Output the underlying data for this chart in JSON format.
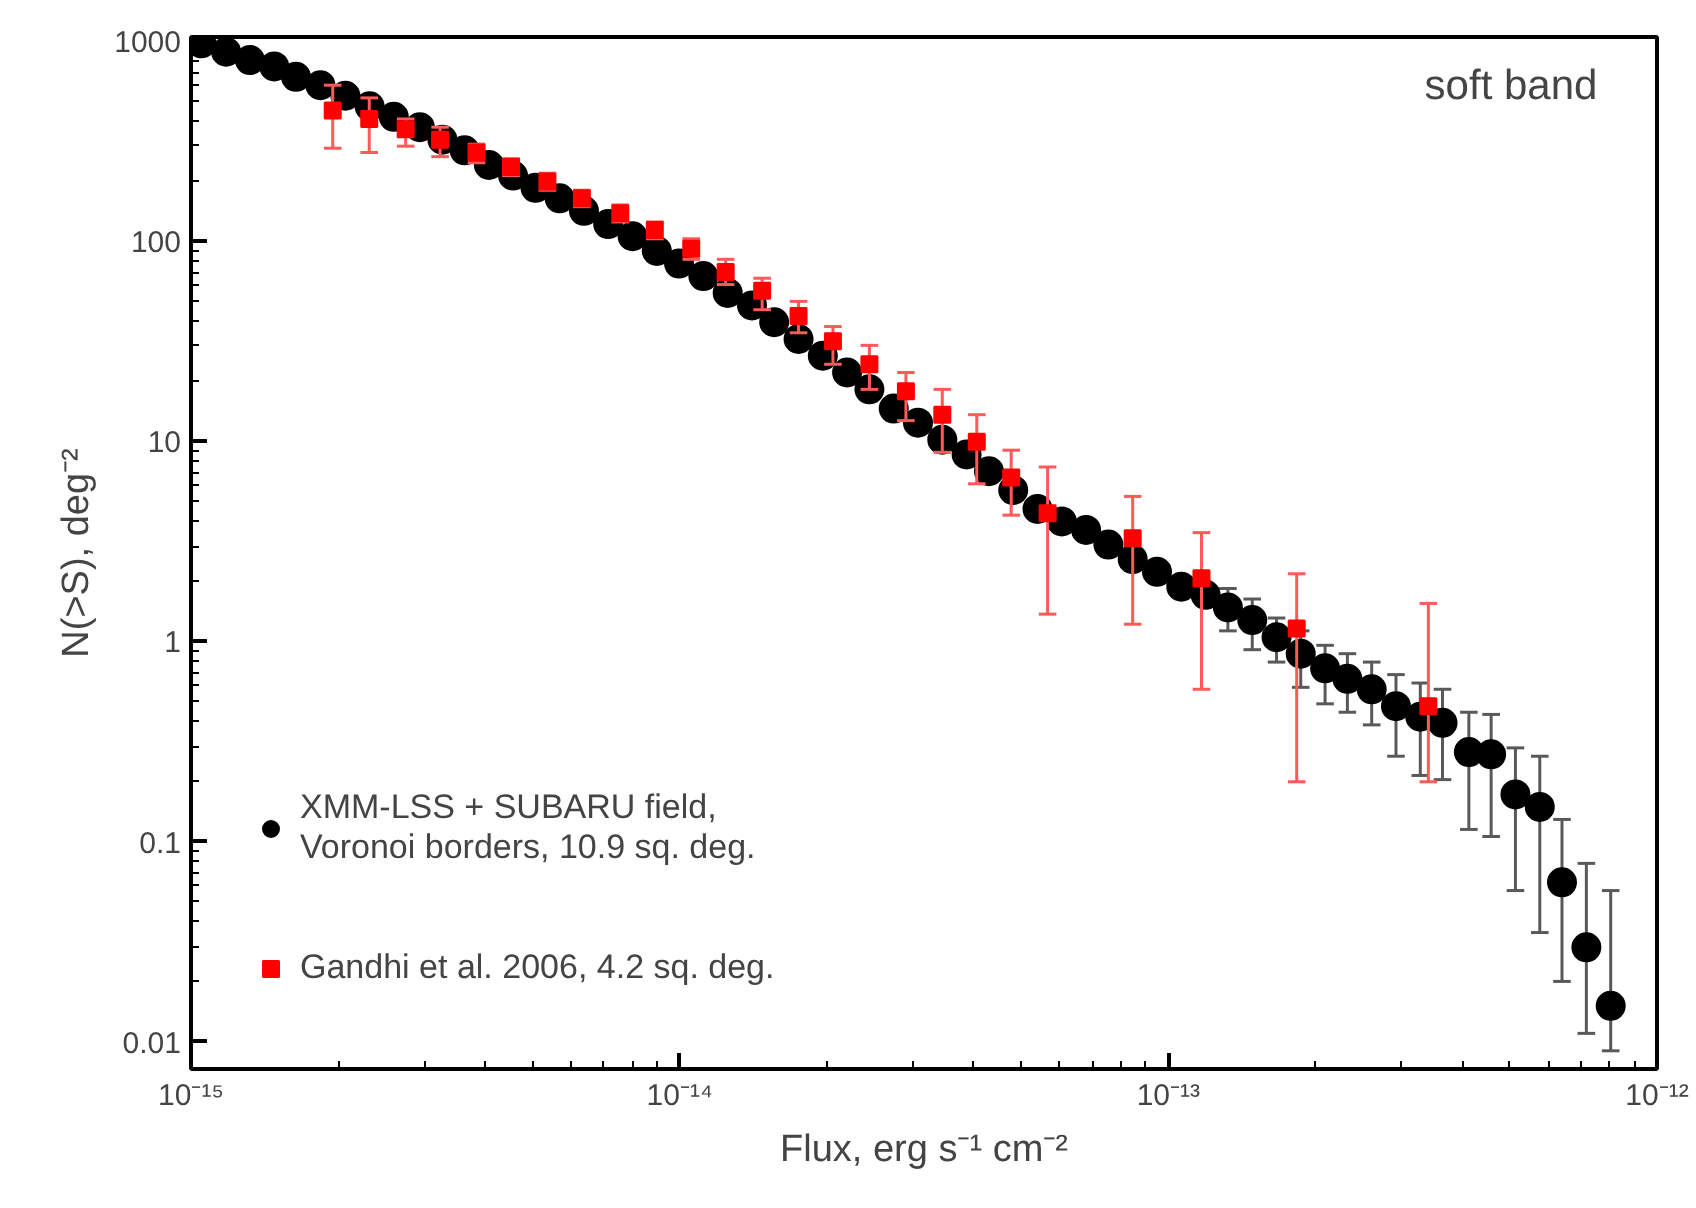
{
  "chart_data": {
    "type": "scatter",
    "xlabel": "Flux, erg s⁻¹ cm⁻²",
    "ylabel": "N(>S), deg⁻²",
    "log": "xy",
    "grid": false,
    "legend": "bottom left",
    "annotations": [
      "soft band"
    ],
    "xlim": [
      1e-15,
      1e-12
    ],
    "ylim": [
      0.0073,
      1050
    ],
    "xticks": [
      {
        "value": 1e-15,
        "label": "10⁻¹⁵"
      },
      {
        "value": 1e-14,
        "label": "10⁻¹⁴"
      },
      {
        "value": 1e-13,
        "label": "10⁻¹³"
      },
      {
        "value": 1e-12,
        "label": "10⁻¹²"
      }
    ],
    "yticks": [
      0.01,
      0.1,
      1,
      10,
      100,
      1000
    ],
    "series": [
      {
        "name": "XMM-LSS + SUBARU field,\nVoronoi borders, 10.9 sq. deg.",
        "color": "#000000",
        "marker": "circle",
        "x": [
          1.05e-15,
          1.18e-15,
          1.32e-15,
          1.48e-15,
          1.64e-15,
          1.84e-15,
          2.07e-15,
          2.32e-15,
          2.6e-15,
          2.94e-15,
          3.27e-15,
          3.63e-15,
          4.07e-15,
          4.56e-15,
          5.07e-15,
          5.68e-15,
          6.37e-15,
          7.14e-15,
          8.01e-15,
          8.98e-15,
          9.97e-15,
          1.118e-14,
          1.254e-14,
          1.406e-14,
          1.561e-14,
          1.751e-14,
          1.963e-14,
          2.201e-14,
          2.445e-14,
          2.742e-14,
          3.074e-14,
          3.447e-14,
          3.865e-14,
          4.294e-14,
          4.815e-14,
          5.399e-14,
          6.053e-14,
          6.787e-14,
          7.539e-14,
          8.454e-14,
          9.48e-14,
          1.063e-13,
          1.192e-13,
          1.324e-13,
          1.485e-13,
          1.665e-13,
          1.866e-13,
          2.093e-13,
          2.325e-13,
          2.607e-13,
          2.923e-13,
          3.278e-13,
          3.64e-13,
          4.121e-13,
          4.577e-13,
          5.132e-13,
          5.756e-13,
          6.391e-13,
          7.169e-13,
          8.04e-13
        ],
        "values": [
          976,
          886,
          805,
          748,
          664,
          603,
          534,
          473,
          419,
          372,
          322,
          285,
          241,
          213,
          185,
          164,
          142,
          122,
          106,
          89.5,
          77.4,
          67.0,
          55.2,
          47.8,
          39.4,
          32.5,
          26.8,
          22.1,
          18.2,
          14.6,
          12.4,
          10.2,
          8.61,
          7.1,
          5.71,
          4.6,
          3.98,
          3.61,
          3.05,
          2.58,
          2.23,
          1.88,
          1.71,
          1.48,
          1.28,
          1.05,
          0.869,
          0.734,
          0.651,
          0.577,
          0.475,
          0.421,
          0.392,
          0.28,
          0.273,
          0.172,
          0.149,
          0.0626,
          0.0296,
          0.0151
        ],
        "errors": [
          null,
          null,
          null,
          null,
          null,
          null,
          null,
          null,
          null,
          null,
          null,
          null,
          null,
          null,
          null,
          null,
          null,
          null,
          null,
          null,
          null,
          null,
          null,
          null,
          null,
          null,
          null,
          null,
          null,
          null,
          null,
          null,
          null,
          null,
          null,
          null,
          null,
          null,
          null,
          null,
          null,
          null,
          null,
          [
            1.13,
            1.84
          ],
          [
            0.91,
            1.63
          ],
          [
            0.789,
            1.31
          ],
          [
            0.59,
            1.13
          ],
          [
            0.488,
            0.957
          ],
          [
            0.443,
            0.869
          ],
          [
            0.383,
            0.789
          ],
          [
            0.267,
            0.683
          ],
          [
            0.214,
            0.62
          ],
          [
            0.204,
            0.577
          ],
          [
            0.115,
            0.443
          ],
          [
            0.106,
            0.432
          ],
          [
            0.0569,
            0.294
          ],
          [
            0.0351,
            0.267
          ],
          [
            0.02,
            0.129
          ],
          [
            0.011,
            0.0778
          ],
          [
            0.009,
            0.0569
          ]
        ]
      },
      {
        "name": "Gandhi et al. 2006, 4.2 sq. deg.",
        "color": "#ff0000",
        "marker": "square",
        "x": [
          1.95e-15,
          2.316e-15,
          2.75e-15,
          3.234e-15,
          3.84e-15,
          4.517e-15,
          5.362e-15,
          6.307e-15,
          7.559e-15,
          8.894e-15,
          1.056e-14,
          1.242e-14,
          1.475e-14,
          1.751e-14,
          2.059e-14,
          2.445e-14,
          2.904e-14,
          3.447e-14,
          4.055e-14,
          4.769e-14,
          5.662e-14,
          8.454e-14,
          1.169e-13,
          1.831e-13,
          3.405e-13
        ],
        "values": [
          451,
          409,
          363,
          322,
          278,
          235,
          199,
          164,
          138,
          114,
          91.7,
          70.3,
          56.6,
          42.4,
          31.7,
          24.3,
          17.8,
          13.6,
          9.95,
          6.6,
          4.38,
          3.28,
          2.07,
          1.16,
          0.475
        ],
        "errors": [
          [
            292,
            603
          ],
          [
            278,
            521
          ],
          [
            299,
            409
          ],
          [
            265,
            372
          ],
          [
            247,
            306
          ],
          [
            213,
            259
          ],
          [
            180,
            219
          ],
          [
            149,
            180
          ],
          [
            125,
            152
          ],
          [
            103,
            125
          ],
          [
            81.3,
            103
          ],
          [
            60.8,
            81.3
          ],
          [
            45.5,
            65.4
          ],
          [
            34.9,
            50.1
          ],
          [
            24.3,
            37.5
          ],
          [
            18.2,
            30.2
          ],
          [
            12.7,
            22.1
          ],
          [
            8.82,
            18.2
          ],
          [
            6.14,
            13.6
          ],
          [
            4.28,
            9.04
          ],
          [
            1.37,
            7.45
          ],
          [
            1.22,
            5.31
          ],
          [
            0.577,
            3.5
          ],
          [
            0.199,
            2.18
          ],
          [
            0.199,
            1.55
          ]
        ]
      }
    ]
  }
}
